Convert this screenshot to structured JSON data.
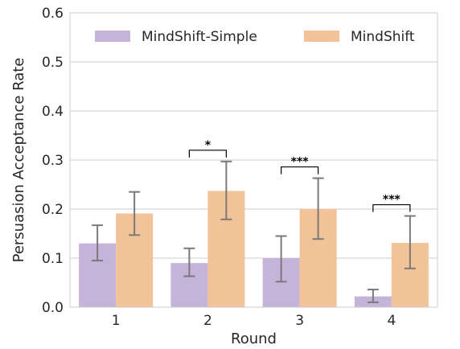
{
  "chart_data": {
    "type": "bar",
    "categories": [
      "1",
      "2",
      "3",
      "4"
    ],
    "series": [
      {
        "name": "MindShift-Simple",
        "color": "#c5b3d9",
        "values": [
          0.13,
          0.09,
          0.1,
          0.022
        ],
        "err_low": [
          0.095,
          0.063,
          0.052,
          0.01
        ],
        "err_high": [
          0.167,
          0.12,
          0.145,
          0.036
        ]
      },
      {
        "name": "MindShift",
        "color": "#f2c398",
        "values": [
          0.191,
          0.237,
          0.2,
          0.131
        ],
        "err_low": [
          0.147,
          0.179,
          0.139,
          0.079
        ],
        "err_high": [
          0.235,
          0.297,
          0.263,
          0.186
        ]
      }
    ],
    "significance": [
      {
        "category": "2",
        "label": "*"
      },
      {
        "category": "3",
        "label": "***"
      },
      {
        "category": "4",
        "label": "***"
      }
    ],
    "xlabel": "Round",
    "ylabel": "Persuasion Acceptance Rate",
    "ylim": [
      0,
      0.6
    ],
    "yticks": [
      "0.0",
      "0.1",
      "0.2",
      "0.3",
      "0.4",
      "0.5",
      "0.6"
    ],
    "grid": true,
    "legend": "top"
  }
}
